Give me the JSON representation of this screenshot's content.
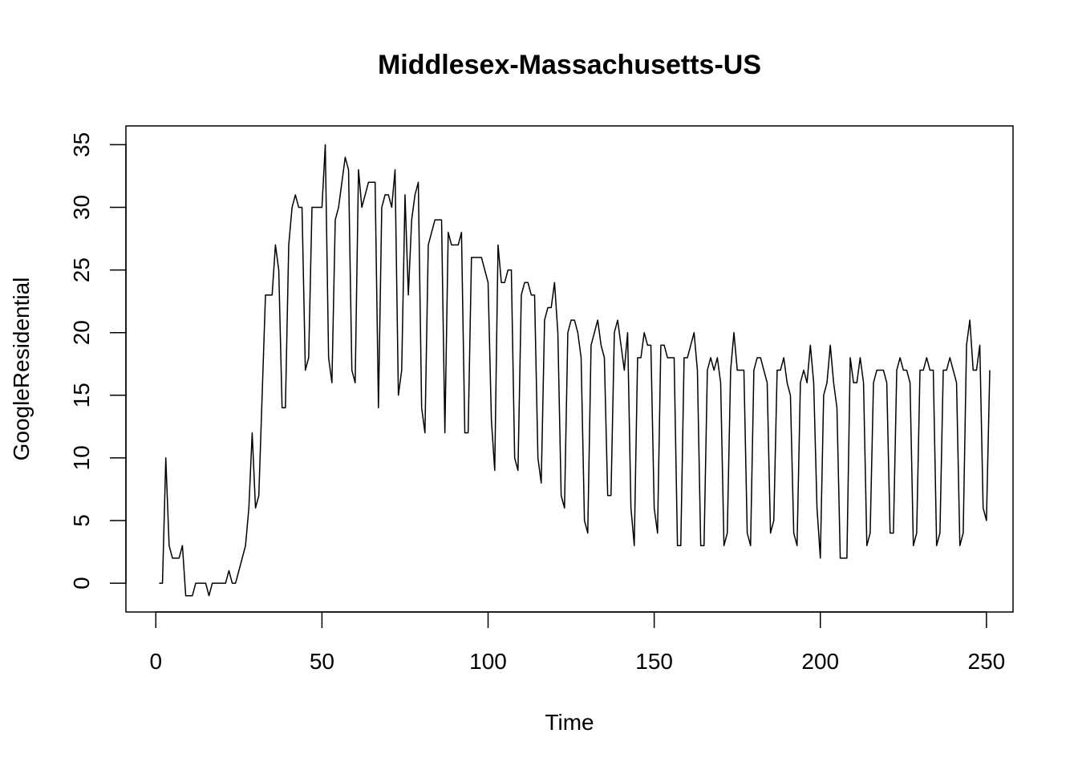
{
  "chart_data": {
    "type": "line",
    "title": "Middlesex-Massachusetts-US",
    "xlabel": "Time",
    "ylabel": "GoogleResidential",
    "xlim": [
      -9,
      258
    ],
    "ylim": [
      -2.3,
      36.5
    ],
    "xticks": [
      0,
      50,
      100,
      150,
      200,
      250
    ],
    "yticks": [
      0,
      5,
      10,
      15,
      20,
      25,
      30,
      35
    ],
    "grid": false,
    "legend": "none",
    "series": [
      {
        "name": "GoogleResidential",
        "x_start": 1,
        "values": [
          0,
          0,
          10,
          3,
          2,
          2,
          2,
          3,
          -1,
          -1,
          -1,
          0,
          0,
          0,
          0,
          -1,
          0,
          0,
          0,
          0,
          0,
          1,
          0,
          0,
          1,
          2,
          3,
          6,
          12,
          6,
          7,
          15,
          23,
          23,
          23,
          27,
          25,
          14,
          14,
          27,
          30,
          31,
          30,
          30,
          17,
          18,
          30,
          30,
          30,
          30,
          35,
          18,
          16,
          29,
          30,
          32,
          34,
          33,
          17,
          16,
          33,
          30,
          31,
          32,
          32,
          32,
          14,
          30,
          31,
          31,
          30,
          33,
          15,
          17,
          31,
          23,
          29,
          31,
          32,
          14,
          12,
          27,
          28,
          29,
          29,
          29,
          12,
          28,
          27,
          27,
          27,
          28,
          12,
          12,
          26,
          26,
          26,
          26,
          25,
          24,
          13,
          9,
          27,
          24,
          24,
          25,
          25,
          10,
          9,
          23,
          24,
          24,
          23,
          23,
          10,
          8,
          21,
          22,
          22,
          24,
          20,
          7,
          6,
          20,
          21,
          21,
          20,
          18,
          5,
          4,
          19,
          20,
          21,
          19,
          18,
          7,
          7,
          20,
          21,
          19,
          17,
          20,
          6,
          3,
          18,
          18,
          20,
          19,
          19,
          6,
          4,
          19,
          19,
          18,
          18,
          18,
          3,
          3,
          18,
          18,
          19,
          20,
          17,
          3,
          3,
          17,
          18,
          17,
          18,
          16,
          3,
          4,
          17,
          20,
          17,
          17,
          17,
          4,
          3,
          17,
          18,
          18,
          17,
          16,
          4,
          5,
          17,
          17,
          18,
          16,
          15,
          4,
          3,
          16,
          17,
          16,
          19,
          16,
          6,
          2,
          15,
          16,
          19,
          16,
          14,
          2,
          2,
          2,
          18,
          16,
          16,
          18,
          16,
          3,
          4,
          16,
          17,
          17,
          17,
          16,
          4,
          4,
          17,
          18,
          17,
          17,
          16,
          3,
          4,
          17,
          17,
          18,
          17,
          17,
          3,
          4,
          17,
          17,
          18,
          17,
          16,
          3,
          4,
          19,
          21,
          17,
          17,
          19,
          6,
          5,
          17
        ]
      }
    ]
  }
}
